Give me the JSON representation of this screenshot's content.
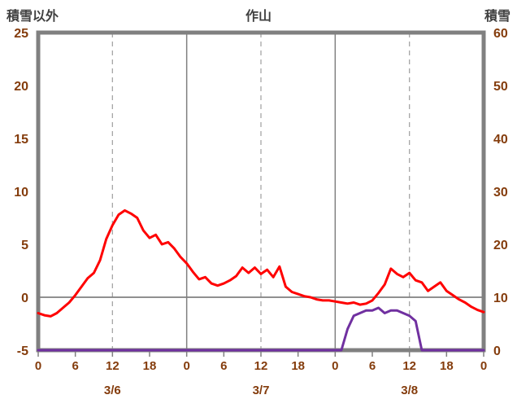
{
  "chart_data": {
    "type": "line",
    "title": "作山",
    "left_axis": {
      "label": "積雪以外",
      "min": -5,
      "max": 25,
      "ticks": [
        25,
        20,
        15,
        10,
        5,
        0,
        -5
      ]
    },
    "right_axis": {
      "label": "積雪",
      "min": 0,
      "max": 60,
      "ticks": [
        60,
        50,
        40,
        30,
        20,
        10,
        0
      ]
    },
    "x_axis": {
      "min_hour": 0,
      "max_hour": 72,
      "tick_interval": 6,
      "hour_labels": [
        "0",
        "6",
        "12",
        "18",
        "0",
        "6",
        "12",
        "18",
        "0",
        "6",
        "12",
        "18",
        "0"
      ],
      "date_labels": [
        "3/6",
        "3/7",
        "3/8"
      ],
      "date_label_hours": [
        12,
        36,
        60
      ]
    },
    "gridlines": {
      "dashed_vertical_hours": [
        12,
        36,
        60
      ],
      "solid_vertical_hours": [
        24,
        48
      ],
      "zero_line_left_value": 0
    },
    "colors": {
      "red_line": "#FF0000",
      "purple_line": "#7030A0",
      "border": "#808080",
      "grid_solid": "#808080",
      "grid_dashed": "#A6A6A6",
      "axis_text": "#843C0C",
      "title_text": "#404040",
      "plot_background": "#FFFFFF"
    },
    "series": [
      {
        "name": "red",
        "axis": "left",
        "color": "#FF0000",
        "values": [
          -1.5,
          -1.7,
          -1.8,
          -1.5,
          -1.0,
          -0.5,
          0.2,
          1.0,
          1.8,
          2.3,
          3.5,
          5.5,
          6.8,
          7.8,
          8.2,
          7.9,
          7.5,
          6.3,
          5.6,
          5.9,
          5.0,
          5.2,
          4.6,
          3.8,
          3.2,
          2.4,
          1.7,
          1.9,
          1.3,
          1.1,
          1.3,
          1.6,
          2.0,
          2.8,
          2.3,
          2.8,
          2.2,
          2.6,
          1.9,
          2.9,
          1.0,
          0.5,
          0.3,
          0.1,
          0.0,
          -0.2,
          -0.3,
          -0.3,
          -0.4,
          -0.5,
          -0.6,
          -0.5,
          -0.7,
          -0.6,
          -0.3,
          0.4,
          1.2,
          2.7,
          2.2,
          1.9,
          2.3,
          1.6,
          1.4,
          0.6,
          1.0,
          1.4,
          0.6,
          0.2,
          -0.2,
          -0.5,
          -0.9,
          -1.2,
          -1.4
        ]
      },
      {
        "name": "purple",
        "axis": "right",
        "color": "#7030A0",
        "values": [
          0,
          0,
          0,
          0,
          0,
          0,
          0,
          0,
          0,
          0,
          0,
          0,
          0,
          0,
          0,
          0,
          0,
          0,
          0,
          0,
          0,
          0,
          0,
          0,
          0,
          0,
          0,
          0,
          0,
          0,
          0,
          0,
          0,
          0,
          0,
          0,
          0,
          0,
          0,
          0,
          0,
          0,
          0,
          0,
          0,
          0,
          0,
          0,
          0,
          0,
          4,
          6.5,
          7,
          7.5,
          7.5,
          8,
          7,
          7.5,
          7.5,
          7,
          6.5,
          5.5,
          0,
          0,
          0,
          0,
          0,
          0,
          0,
          0,
          0,
          0,
          0
        ]
      }
    ]
  }
}
